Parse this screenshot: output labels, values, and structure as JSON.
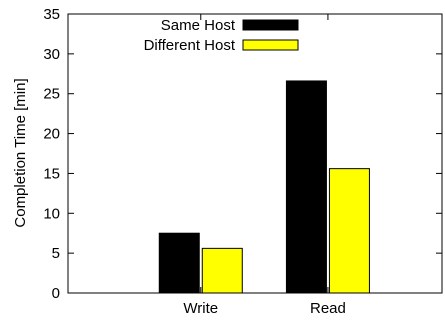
{
  "chart_data": {
    "type": "bar",
    "categories": [
      "Write",
      "Read"
    ],
    "series": [
      {
        "name": "Same Host",
        "values": [
          7.5,
          26.6
        ],
        "color": "#000000"
      },
      {
        "name": "Different Host",
        "values": [
          5.6,
          15.6
        ],
        "color": "#ffff00"
      }
    ],
    "xlabel": "",
    "ylabel": "Completion Time [min]",
    "ylim": [
      0,
      35
    ],
    "yticks": [
      0,
      5,
      10,
      15,
      20,
      25,
      30,
      35
    ],
    "grid": false,
    "legend_position": "top"
  }
}
